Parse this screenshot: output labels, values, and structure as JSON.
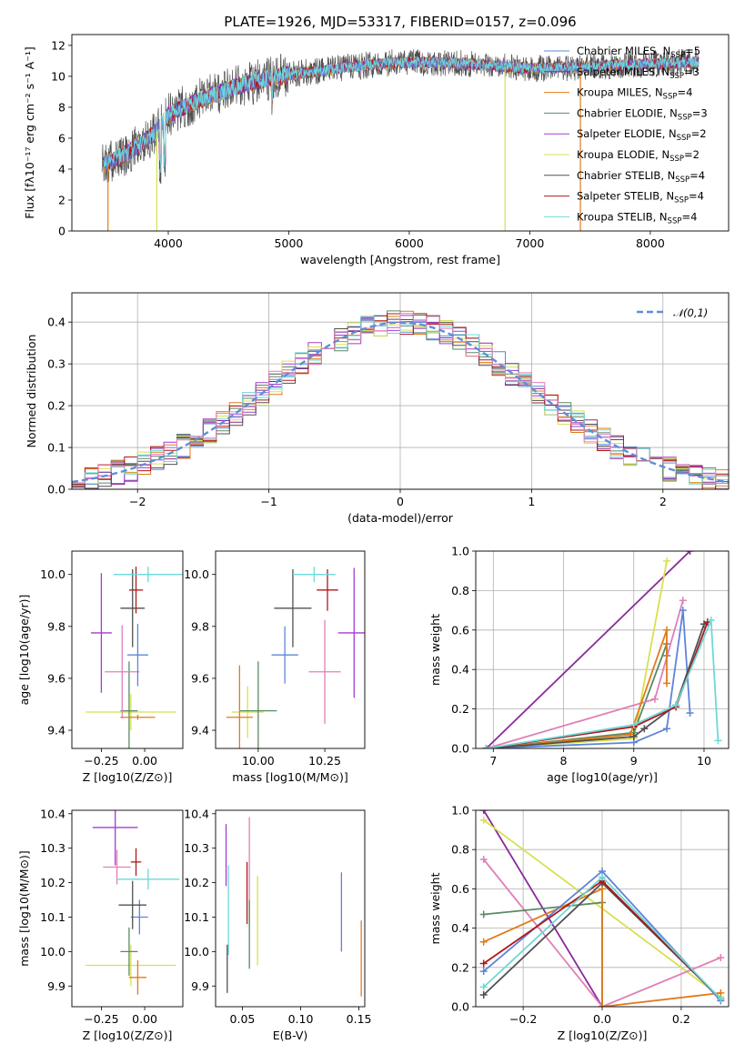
{
  "title": "PLATE=1926, MJD=53317, FIBERID=0157, z=0.096",
  "colors": {
    "Chabrier MILES": "#5e84d8",
    "Salpeter MILES": "#8b2a9a",
    "Kroupa MILES": "#e07b1a",
    "Chabrier ELODIE": "#5a8a64",
    "Salpeter ELODIE": "#a43bd0",
    "Kroupa ELODIE": "#d8e050",
    "Chabrier STELIB": "#505050",
    "Salpeter STELIB": "#b01818",
    "Kroupa STELIB": "#6ed8d8",
    "pink": "#e07fb8",
    "normal": "#5e8ed8"
  },
  "chart_data": [
    {
      "id": "spectrum",
      "type": "line",
      "xlabel": "wavelength [Angstrom, rest frame]",
      "ylabel": "Flux [fλ10⁻¹⁷ erg cm⁻² s⁻¹ A⁻¹]",
      "xlim": [
        3200,
        8650
      ],
      "ylim": [
        0,
        12.7
      ],
      "xticks": [
        4000,
        5000,
        6000,
        7000,
        8000
      ],
      "yticks": [
        0,
        2,
        4,
        6,
        8,
        10,
        12
      ],
      "grid": false,
      "legend_position": "right",
      "continuum": {
        "x": [
          3450,
          3600,
          3750,
          3900,
          4000,
          4200,
          4400,
          4600,
          4800,
          5000,
          5300,
          5600,
          5900,
          6200,
          6500,
          6800,
          7100,
          7400,
          7700,
          8000,
          8300,
          8400
        ],
        "y": [
          4.2,
          4.8,
          5.5,
          6.4,
          7.5,
          8.3,
          8.9,
          9.4,
          9.8,
          10.1,
          10.4,
          10.7,
          10.9,
          10.9,
          10.8,
          10.6,
          10.5,
          10.6,
          10.7,
          10.8,
          10.9,
          10.9
        ]
      },
      "series": [
        {
          "name": "Chabrier MILES, N_SSP=5"
        },
        {
          "name": "Salpeter MILES, N_SSP=3"
        },
        {
          "name": "Kroupa MILES, N_SSP=4"
        },
        {
          "name": "Chabrier ELODIE, N_SSP=3"
        },
        {
          "name": "Salpeter ELODIE, N_SSP=2"
        },
        {
          "name": "Kroupa ELODIE, N_SSP=2"
        },
        {
          "name": "Chabrier STELIB, N_SSP=4"
        },
        {
          "name": "Salpeter STELIB, N_SSP=4"
        },
        {
          "name": "Kroupa STELIB, N_SSP=4"
        }
      ]
    },
    {
      "id": "residuals",
      "type": "line",
      "xlabel": "(data-model)/error",
      "ylabel": "Normed distribution",
      "xlim": [
        -2.5,
        2.5
      ],
      "ylim": [
        0,
        0.47
      ],
      "xticks": [
        -2,
        -1,
        0,
        1,
        2
      ],
      "yticks": [
        0.0,
        0.1,
        0.2,
        0.3,
        0.4
      ],
      "grid": true,
      "legend_position": "top-right",
      "legend_label": "𝒩(0,1)",
      "bin_width": 0.1,
      "series_count": 9
    },
    {
      "id": "age-vs-Z",
      "type": "scatter",
      "xlabel": "Z [log10(Z/Z⊙)]",
      "ylabel": "age  [log10(age/yr)]",
      "xlim": [
        -0.42,
        0.22
      ],
      "ylim": [
        9.33,
        10.09
      ],
      "xticks": [
        -0.25,
        0.0
      ],
      "yticks": [
        9.4,
        9.6,
        9.8,
        10.0
      ],
      "points": [
        {
          "x": -0.08,
          "y": 9.47,
          "xerr": 0.26,
          "yerr": 0.07,
          "color": "#d8e050"
        },
        {
          "x": -0.09,
          "y": 9.475,
          "xerr": 0.05,
          "yerr": 0.19,
          "color": "#5a8a64"
        },
        {
          "x": -0.04,
          "y": 9.45,
          "xerr": 0.1,
          "yerr": 0.01,
          "color": "#e07b1a"
        },
        {
          "x": -0.13,
          "y": 9.625,
          "xerr": 0.1,
          "yerr": 0.18,
          "color": "#e07fb8"
        },
        {
          "x": -0.25,
          "y": 9.775,
          "xerr": 0.06,
          "yerr": 0.23,
          "color": "#a43bd0"
        },
        {
          "x": -0.04,
          "y": 9.69,
          "xerr": 0.06,
          "yerr": 0.12,
          "color": "#5e84d8"
        },
        {
          "x": -0.07,
          "y": 9.87,
          "xerr": 0.07,
          "yerr": 0.15,
          "color": "#505050"
        },
        {
          "x": -0.05,
          "y": 9.94,
          "xerr": 0.04,
          "yerr": 0.09,
          "color": "#b01818"
        },
        {
          "x": 0.02,
          "y": 10.0,
          "xerr": 0.2,
          "yerr": 0.03,
          "color": "#6ed8d8"
        }
      ]
    },
    {
      "id": "age-vs-mass",
      "type": "scatter",
      "xlabel": "mass [log10(M/M⊙)]",
      "ylabel": "",
      "xlim": [
        9.84,
        10.4
      ],
      "ylim": [
        9.33,
        10.09
      ],
      "xticks": [
        10.0,
        10.25
      ],
      "yticks": [
        9.4,
        9.6,
        9.8,
        10.0
      ],
      "points": [
        {
          "x": 9.96,
          "y": 9.47,
          "xerr": 0.06,
          "yerr": 0.1,
          "color": "#d8e050"
        },
        {
          "x": 10.0,
          "y": 9.475,
          "xerr": 0.07,
          "yerr": 0.19,
          "color": "#5a8a64"
        },
        {
          "x": 9.93,
          "y": 9.45,
          "xerr": 0.05,
          "yerr": 0.2,
          "color": "#e07b1a"
        },
        {
          "x": 10.25,
          "y": 9.625,
          "xerr": 0.06,
          "yerr": 0.2,
          "color": "#e07fb8"
        },
        {
          "x": 10.36,
          "y": 9.775,
          "xerr": 0.06,
          "yerr": 0.25,
          "color": "#a43bd0"
        },
        {
          "x": 10.1,
          "y": 9.69,
          "xerr": 0.05,
          "yerr": 0.11,
          "color": "#5e84d8"
        },
        {
          "x": 10.13,
          "y": 9.87,
          "xerr": 0.07,
          "yerr": 0.15,
          "color": "#505050"
        },
        {
          "x": 10.26,
          "y": 9.94,
          "xerr": 0.04,
          "yerr": 0.08,
          "color": "#b01818"
        },
        {
          "x": 10.21,
          "y": 10.0,
          "xerr": 0.08,
          "yerr": 0.03,
          "color": "#6ed8d8"
        }
      ]
    },
    {
      "id": "mass-weight-vs-age",
      "type": "line",
      "xlabel": "age  [log10(age/yr)]",
      "ylabel": "mass weight",
      "xlim": [
        6.75,
        10.35
      ],
      "ylim": [
        0,
        1.0
      ],
      "xticks": [
        7,
        8,
        9,
        10
      ],
      "yticks": [
        0.0,
        0.2,
        0.4,
        0.6,
        0.8,
        1.0
      ],
      "grid": true,
      "series": [
        {
          "color": "#8b2a9a",
          "x": [
            6.9,
            9.8
          ],
          "y": [
            0.0,
            1.0
          ]
        },
        {
          "color": "#d8e050",
          "x": [
            6.9,
            9.0,
            9.47
          ],
          "y": [
            0.0,
            0.05,
            0.95
          ]
        },
        {
          "color": "#5a8a64",
          "x": [
            6.9,
            9.0,
            9.47,
            9.47
          ],
          "y": [
            0.0,
            0.08,
            0.53,
            0.47
          ]
        },
        {
          "color": "#e07fb8",
          "x": [
            6.9,
            9.3,
            9.7
          ],
          "y": [
            0.0,
            0.25,
            0.75
          ]
        },
        {
          "color": "#e07b1a",
          "x": [
            6.9,
            8.95,
            9.47,
            9.47
          ],
          "y": [
            0.0,
            0.07,
            0.6,
            0.33
          ]
        },
        {
          "color": "#5e84d8",
          "x": [
            6.9,
            9.0,
            9.47,
            9.7,
            9.8
          ],
          "y": [
            0.0,
            0.03,
            0.1,
            0.7,
            0.18
          ]
        },
        {
          "color": "#505050",
          "x": [
            6.9,
            9.0,
            9.15,
            9.6,
            10.0,
            10.05
          ],
          "y": [
            0.0,
            0.06,
            0.1,
            0.22,
            0.63,
            0.64
          ]
        },
        {
          "color": "#b01818",
          "x": [
            6.9,
            9.0,
            9.6,
            10.05
          ],
          "y": [
            0.0,
            0.11,
            0.21,
            0.64
          ]
        },
        {
          "color": "#6ed8d8",
          "x": [
            6.9,
            9.0,
            9.6,
            10.1,
            10.2
          ],
          "y": [
            0.0,
            0.12,
            0.22,
            0.65,
            0.04
          ]
        }
      ]
    },
    {
      "id": "mass-vs-Z",
      "type": "scatter",
      "xlabel": "Z [log10(Z/Z⊙)]",
      "ylabel": "mass [log10(M/M⊙)]",
      "xlim": [
        -0.42,
        0.22
      ],
      "ylim": [
        9.84,
        10.41
      ],
      "xticks": [
        -0.25,
        0.0
      ],
      "yticks": [
        9.9,
        10.0,
        10.1,
        10.2,
        10.3,
        10.4
      ],
      "points": [
        {
          "x": -0.08,
          "y": 9.96,
          "xerr": 0.26,
          "yerr": 0.06,
          "color": "#d8e050"
        },
        {
          "x": -0.09,
          "y": 10.0,
          "xerr": 0.05,
          "yerr": 0.07,
          "color": "#5a8a64"
        },
        {
          "x": -0.04,
          "y": 9.925,
          "xerr": 0.05,
          "yerr": 0.05,
          "color": "#e07b1a"
        },
        {
          "x": -0.16,
          "y": 10.245,
          "xerr": 0.08,
          "yerr": 0.05,
          "color": "#e07fb8"
        },
        {
          "x": -0.17,
          "y": 10.36,
          "xerr": 0.13,
          "yerr": 0.11,
          "color": "#a43bd0"
        },
        {
          "x": -0.03,
          "y": 10.1,
          "xerr": 0.05,
          "yerr": 0.05,
          "color": "#5e84d8"
        },
        {
          "x": -0.07,
          "y": 10.135,
          "xerr": 0.08,
          "yerr": 0.07,
          "color": "#505050"
        },
        {
          "x": -0.05,
          "y": 10.26,
          "xerr": 0.03,
          "yerr": 0.04,
          "color": "#b01818"
        },
        {
          "x": 0.02,
          "y": 10.21,
          "xerr": 0.18,
          "yerr": 0.03,
          "color": "#6ed8d8"
        }
      ]
    },
    {
      "id": "mass-vs-EBV",
      "type": "scatter",
      "xlabel": "E(B-V)",
      "ylabel": "",
      "xlim": [
        0.027,
        0.155
      ],
      "ylim": [
        9.84,
        10.41
      ],
      "xticks": [
        0.05,
        0.1,
        0.15
      ],
      "yticks": [
        9.9,
        10.0,
        10.1,
        10.2,
        10.3,
        10.4
      ],
      "points": [
        {
          "x": 0.063,
          "y": 10.09,
          "yerr": 0.13,
          "color": "#d8e050"
        },
        {
          "x": 0.038,
          "y": 10.12,
          "yerr": 0.13,
          "color": "#6ed8d8"
        },
        {
          "x": 0.037,
          "y": 9.95,
          "yerr": 0.07,
          "color": "#505050"
        },
        {
          "x": 0.036,
          "y": 10.28,
          "yerr": 0.09,
          "color": "#a43bd0"
        },
        {
          "x": 0.056,
          "y": 10.23,
          "yerr": 0.16,
          "color": "#e07fb8"
        },
        {
          "x": 0.054,
          "y": 10.17,
          "yerr": 0.09,
          "color": "#b01818"
        },
        {
          "x": 0.056,
          "y": 10.05,
          "yerr": 0.1,
          "color": "#5a8a64"
        },
        {
          "x": 0.135,
          "y": 10.115,
          "yerr": 0.115,
          "color": "#5e84d8"
        },
        {
          "x": 0.152,
          "y": 9.98,
          "yerr": 0.11,
          "color": "#e07b1a"
        }
      ]
    },
    {
      "id": "mass-weight-vs-Z",
      "type": "line",
      "xlabel": "Z [log10(Z/Z⊙)]",
      "ylabel": "mass weight",
      "xlim": [
        -0.32,
        0.32
      ],
      "ylim": [
        0,
        1.0
      ],
      "xticks": [
        -0.2,
        0.0,
        0.2
      ],
      "yticks": [
        0.0,
        0.2,
        0.4,
        0.6,
        0.8,
        1.0
      ],
      "grid": true,
      "series": [
        {
          "color": "#8b2a9a",
          "x": [
            -0.3,
            0.0
          ],
          "y": [
            1.0,
            0.0
          ]
        },
        {
          "color": "#d8e050",
          "x": [
            -0.3,
            0.3
          ],
          "y": [
            0.95,
            0.05
          ]
        },
        {
          "color": "#e07fb8",
          "x": [
            -0.3,
            0.0,
            0.3
          ],
          "y": [
            0.75,
            0.0,
            0.25
          ]
        },
        {
          "color": "#5a8a64",
          "x": [
            -0.3,
            0.0,
            0.0
          ],
          "y": [
            0.47,
            0.53,
            0.0
          ]
        },
        {
          "color": "#e07b1a",
          "x": [
            -0.3,
            0.0,
            0.0,
            0.3
          ],
          "y": [
            0.33,
            0.6,
            0.0,
            0.07
          ]
        },
        {
          "color": "#5e84d8",
          "x": [
            -0.3,
            0.0,
            0.3
          ],
          "y": [
            0.18,
            0.69,
            0.03
          ]
        },
        {
          "color": "#505050",
          "x": [
            -0.3,
            0.0,
            0.3
          ],
          "y": [
            0.06,
            0.63,
            0.04
          ]
        },
        {
          "color": "#b01818",
          "x": [
            -0.3,
            0.0,
            0.3
          ],
          "y": [
            0.22,
            0.64,
            0.04
          ]
        },
        {
          "color": "#6ed8d8",
          "x": [
            -0.3,
            0.0,
            0.3
          ],
          "y": [
            0.1,
            0.66,
            0.04
          ]
        }
      ]
    }
  ]
}
